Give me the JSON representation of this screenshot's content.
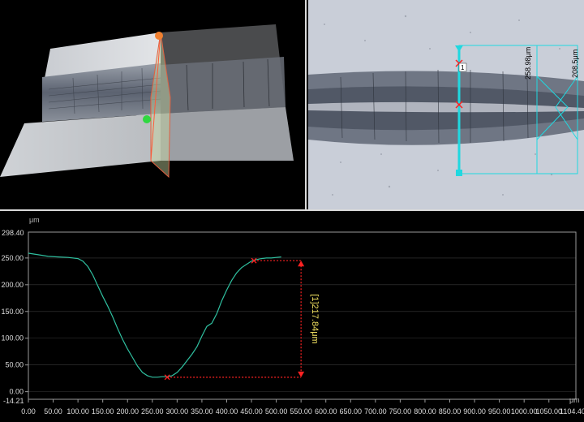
{
  "micro": {
    "width_label_1": "258.98μm",
    "width_label_2": "208.5μm",
    "marker_label": "1"
  },
  "profile": {
    "unit_y": "μm",
    "unit_x": "μm",
    "y_top_label": "298.40",
    "y_bottom_label": "-14.21",
    "x_right_label": "1104.40",
    "y_ticks": [
      "250.00",
      "200.00",
      "150.00",
      "100.00",
      "50.00",
      "0.00"
    ],
    "x_ticks": [
      "0.00",
      "50.00",
      "100.00",
      "150.00",
      "200.00",
      "250.00",
      "300.00",
      "350.00",
      "400.00",
      "450.00",
      "500.00",
      "550.00",
      "600.00",
      "650.00",
      "700.00",
      "750.00",
      "800.00",
      "850.00",
      "900.00",
      "950.00",
      "1000.00",
      "1050.00"
    ],
    "measurement_label": "[1]217.84μm",
    "colors": {
      "curve": "#2fbf9f",
      "measure": "#ff2222",
      "label": "#f0e060",
      "axis": "#9a9a9a",
      "grid": "#3a3a3a"
    }
  },
  "chart_data": {
    "type": "line",
    "xlabel": "μm",
    "ylabel": "μm",
    "xlim": [
      0.0,
      1104.4
    ],
    "ylim": [
      -14.21,
      298.4
    ],
    "series": [
      {
        "x": [
          0,
          20,
          40,
          60,
          80,
          100,
          110,
          120,
          130,
          140,
          150,
          160,
          170,
          180,
          190,
          200,
          210,
          220,
          230,
          240,
          250,
          260,
          270,
          280,
          290,
          300,
          310,
          320,
          330,
          340,
          350,
          360,
          370,
          380,
          390,
          400,
          410,
          420,
          430,
          440,
          450,
          460,
          470,
          480,
          490,
          500,
          510
        ],
        "y": [
          259,
          256,
          253,
          252,
          251,
          249,
          244,
          234,
          218,
          198,
          178,
          160,
          140,
          118,
          98,
          80,
          64,
          48,
          36,
          30,
          27,
          27,
          28,
          28,
          30,
          36,
          46,
          58,
          70,
          84,
          104,
          122,
          128,
          146,
          170,
          190,
          208,
          222,
          232,
          238,
          244,
          247,
          249,
          250,
          250,
          251,
          252
        ]
      }
    ],
    "markers": [
      {
        "x": 280,
        "y": 27
      },
      {
        "x": 455,
        "y": 245
      }
    ],
    "measurement": {
      "value": 217.84
    }
  }
}
